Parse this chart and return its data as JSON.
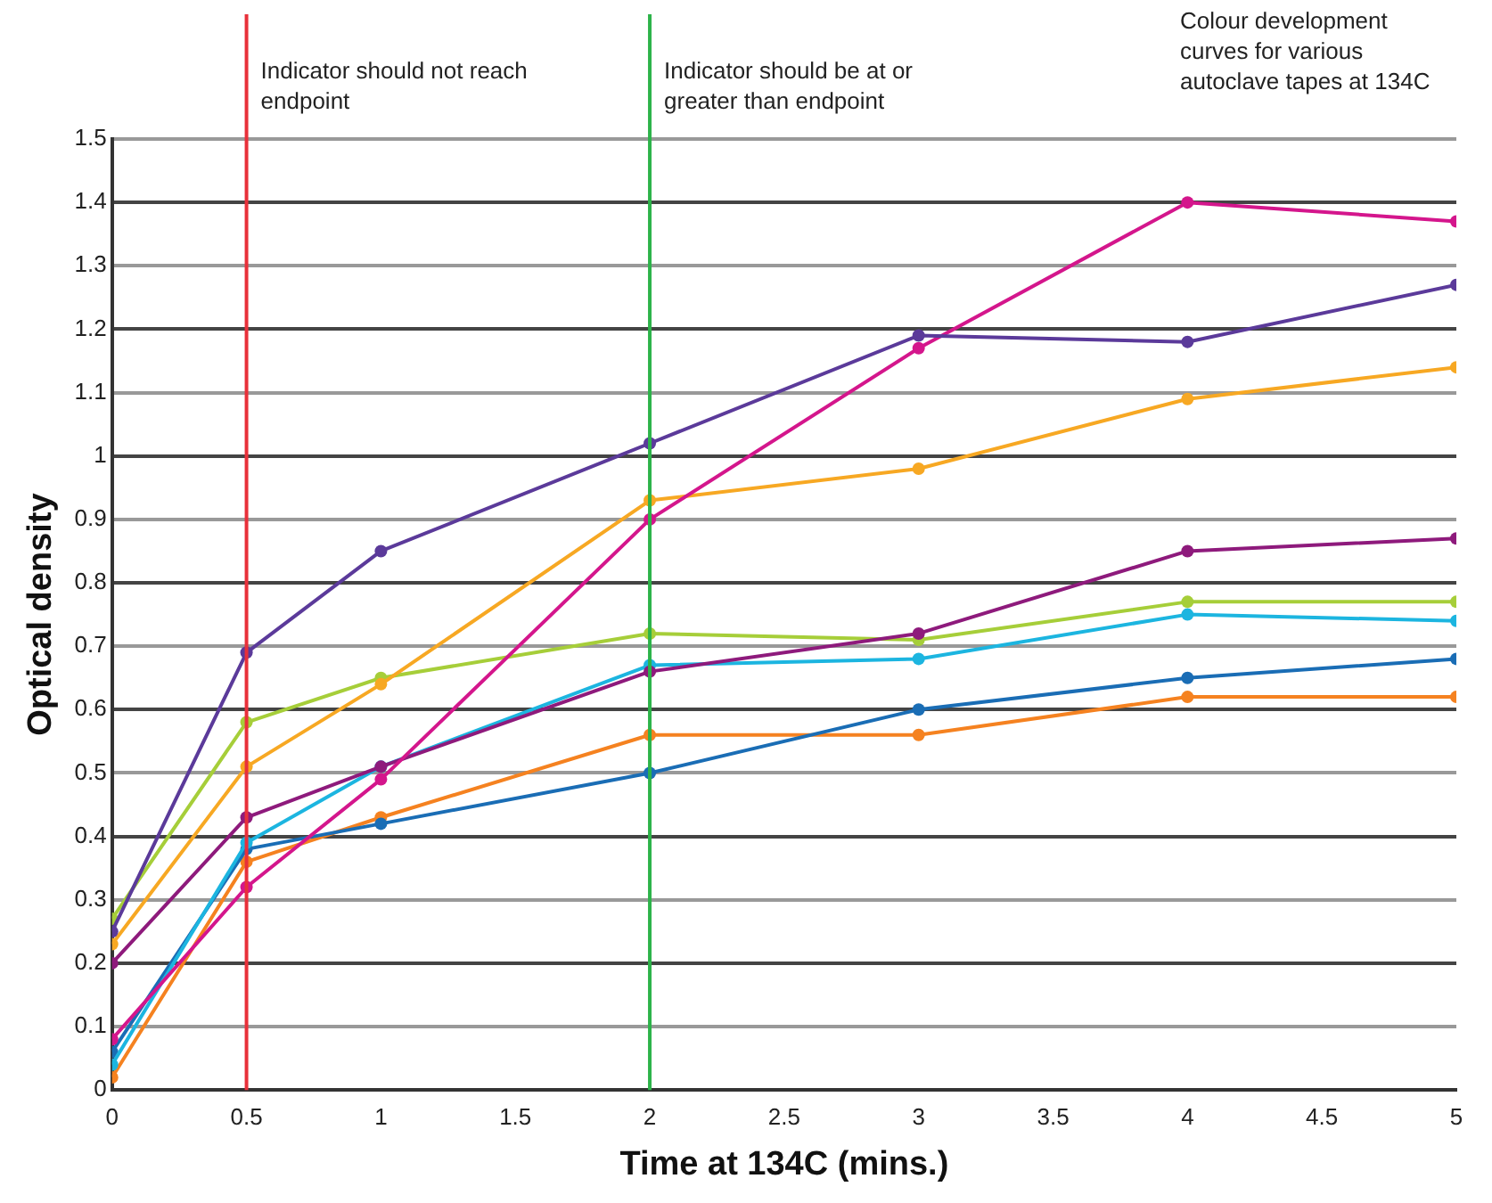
{
  "chart_data": {
    "type": "line",
    "xlabel": "Time at 134C (mins.)",
    "ylabel": "Optical density",
    "x": [
      0,
      0.5,
      1,
      2,
      3,
      4,
      5
    ],
    "xlim": [
      0,
      5
    ],
    "xticks": [
      0,
      0.5,
      1,
      1.5,
      2,
      2.5,
      3,
      3.5,
      4,
      4.5,
      5
    ],
    "ylim": [
      0,
      1.5
    ],
    "yticks": [
      0,
      0.1,
      0.2,
      0.3,
      0.4,
      0.5,
      0.6,
      0.7,
      0.8,
      0.9,
      1,
      1.1,
      1.2,
      1.3,
      1.4,
      1.5
    ],
    "grid": "y",
    "legend": false,
    "marker": "circle",
    "line_style": "solid",
    "series": [
      {
        "color": "#5b3a9a",
        "values": [
          0.25,
          0.69,
          0.85,
          1.02,
          1.19,
          1.18,
          1.27
        ]
      },
      {
        "color": "#d4168c",
        "values": [
          0.08,
          0.32,
          0.49,
          0.9,
          1.17,
          1.4,
          1.37
        ]
      },
      {
        "color": "#f7a823",
        "values": [
          0.23,
          0.51,
          0.64,
          0.93,
          0.98,
          1.09,
          1.14
        ]
      },
      {
        "color": "#8e1a7c",
        "values": [
          0.2,
          0.43,
          0.51,
          0.66,
          0.72,
          0.85,
          0.87
        ]
      },
      {
        "color": "#a6ce39",
        "values": [
          0.27,
          0.58,
          0.65,
          0.72,
          0.71,
          0.77,
          0.77
        ]
      },
      {
        "color": "#1cb5e0",
        "values": [
          0.04,
          0.39,
          0.51,
          0.67,
          0.68,
          0.75,
          0.74
        ]
      },
      {
        "color": "#1a6db5",
        "values": [
          0.06,
          0.38,
          0.42,
          0.5,
          0.6,
          0.65,
          0.68
        ]
      },
      {
        "color": "#f58220",
        "values": [
          0.02,
          0.36,
          0.43,
          0.56,
          0.56,
          0.62,
          0.62
        ]
      }
    ],
    "ref_lines": [
      {
        "axis": "x",
        "value": 0.5,
        "label": "Indicator should not reach endpoint",
        "color": "#e8303a"
      },
      {
        "axis": "x",
        "value": 2,
        "label": "Indicator should be at or greater than endpoint",
        "color": "#2db34a"
      }
    ],
    "annotations": [
      "Colour development curves for various autoclave tapes at 134C"
    ]
  }
}
